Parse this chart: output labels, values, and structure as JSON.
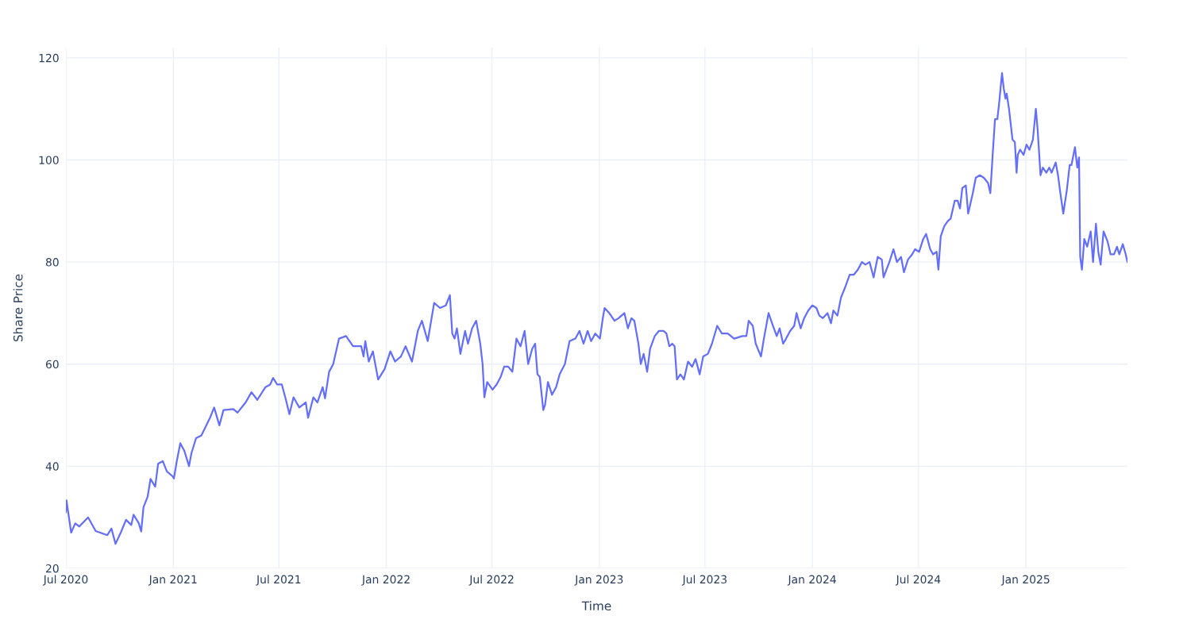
{
  "chart_data": {
    "type": "line",
    "xlabel": "Time",
    "ylabel": "Share Price",
    "xlim": [
      "2020-07-01",
      "2025-06-24"
    ],
    "ylim": [
      20,
      122
    ],
    "xticks": [
      {
        "value": "2020-07-01",
        "label": "Jul 2020"
      },
      {
        "value": "2021-01-01",
        "label": "Jan 2021"
      },
      {
        "value": "2021-07-01",
        "label": "Jul 2021"
      },
      {
        "value": "2022-01-01",
        "label": "Jan 2022"
      },
      {
        "value": "2022-07-01",
        "label": "Jul 2022"
      },
      {
        "value": "2023-01-01",
        "label": "Jan 2023"
      },
      {
        "value": "2023-07-01",
        "label": "Jul 2023"
      },
      {
        "value": "2024-01-01",
        "label": "Jan 2024"
      },
      {
        "value": "2024-07-01",
        "label": "Jul 2024"
      },
      {
        "value": "2025-01-01",
        "label": "Jan 2025"
      }
    ],
    "yticks": [
      20,
      40,
      60,
      80,
      100,
      120
    ],
    "grid": true,
    "marker": "none",
    "line_style": "solid",
    "x": [
      "2020-07-01",
      "2020-07-02",
      "2020-07-10",
      "2020-07-17",
      "2020-07-24",
      "2020-08-08",
      "2020-08-21",
      "2020-09-10",
      "2020-09-17",
      "2020-09-24",
      "2020-10-03",
      "2020-10-12",
      "2020-10-21",
      "2020-10-25",
      "2020-11-03",
      "2020-11-07",
      "2020-11-11",
      "2020-11-18",
      "2020-11-23",
      "2020-12-01",
      "2020-12-06",
      "2020-12-14",
      "2020-12-21",
      "2020-12-31",
      "2021-01-02",
      "2021-01-07",
      "2021-01-13",
      "2021-01-20",
      "2021-01-28",
      "2021-02-01",
      "2021-02-09",
      "2021-02-18",
      "2021-03-05",
      "2021-03-12",
      "2021-03-21",
      "2021-03-28",
      "2021-04-14",
      "2021-04-21",
      "2021-05-05",
      "2021-05-15",
      "2021-05-25",
      "2021-06-08",
      "2021-06-16",
      "2021-06-21",
      "2021-06-28",
      "2021-07-06",
      "2021-07-13",
      "2021-07-19",
      "2021-07-26",
      "2021-08-05",
      "2021-08-16",
      "2021-08-20",
      "2021-08-29",
      "2021-09-05",
      "2021-09-14",
      "2021-09-18",
      "2021-09-25",
      "2021-10-02",
      "2021-10-12",
      "2021-10-24",
      "2021-11-05",
      "2021-11-19",
      "2021-11-23",
      "2021-11-26",
      "2021-12-02",
      "2021-12-09",
      "2021-12-18",
      "2021-12-29",
      "2022-01-08",
      "2022-01-16",
      "2022-01-26",
      "2022-02-03",
      "2022-02-14",
      "2022-02-24",
      "2022-03-03",
      "2022-03-13",
      "2022-03-24",
      "2022-04-03",
      "2022-04-13",
      "2022-04-20",
      "2022-04-24",
      "2022-04-28",
      "2022-05-02",
      "2022-05-08",
      "2022-05-16",
      "2022-05-21",
      "2022-05-28",
      "2022-06-04",
      "2022-06-11",
      "2022-06-15",
      "2022-06-18",
      "2022-06-23",
      "2022-07-02",
      "2022-07-09",
      "2022-07-16",
      "2022-07-22",
      "2022-07-29",
      "2022-08-05",
      "2022-08-12",
      "2022-08-19",
      "2022-08-26",
      "2022-09-01",
      "2022-09-08",
      "2022-09-13",
      "2022-09-17",
      "2022-09-21",
      "2022-09-27",
      "2022-09-30",
      "2022-10-05",
      "2022-10-12",
      "2022-10-19",
      "2022-10-25",
      "2022-11-03",
      "2022-11-11",
      "2022-11-21",
      "2022-11-28",
      "2022-12-05",
      "2022-12-12",
      "2022-12-18",
      "2022-12-25",
      "2023-01-02",
      "2023-01-07",
      "2023-01-10",
      "2023-01-18",
      "2023-01-27",
      "2023-02-03",
      "2023-02-13",
      "2023-02-19",
      "2023-02-25",
      "2023-03-02",
      "2023-03-09",
      "2023-03-13",
      "2023-03-18",
      "2023-03-24",
      "2023-03-29",
      "2023-04-06",
      "2023-04-13",
      "2023-04-21",
      "2023-04-26",
      "2023-05-01",
      "2023-05-06",
      "2023-05-10",
      "2023-05-14",
      "2023-05-20",
      "2023-05-26",
      "2023-06-02",
      "2023-06-09",
      "2023-06-15",
      "2023-06-22",
      "2023-06-28",
      "2023-07-06",
      "2023-07-13",
      "2023-07-22",
      "2023-07-30",
      "2023-08-09",
      "2023-08-20",
      "2023-09-03",
      "2023-09-10",
      "2023-09-14",
      "2023-09-21",
      "2023-09-26",
      "2023-10-05",
      "2023-10-10",
      "2023-10-18",
      "2023-10-24",
      "2023-11-01",
      "2023-11-06",
      "2023-11-12",
      "2023-11-17",
      "2023-11-24",
      "2023-12-01",
      "2023-12-05",
      "2023-12-12",
      "2023-12-18",
      "2023-12-25",
      "2024-01-01",
      "2024-01-08",
      "2024-01-13",
      "2024-01-19",
      "2024-01-27",
      "2024-02-02",
      "2024-02-06",
      "2024-02-13",
      "2024-02-19",
      "2024-02-26",
      "2024-03-05",
      "2024-03-12",
      "2024-03-19",
      "2024-03-26",
      "2024-04-01",
      "2024-04-08",
      "2024-04-15",
      "2024-04-22",
      "2024-04-29",
      "2024-05-02",
      "2024-05-12",
      "2024-05-19",
      "2024-05-25",
      "2024-06-01",
      "2024-06-06",
      "2024-06-13",
      "2024-06-20",
      "2024-06-25",
      "2024-07-02",
      "2024-07-09",
      "2024-07-14",
      "2024-07-21",
      "2024-07-26",
      "2024-08-01",
      "2024-08-04",
      "2024-08-08",
      "2024-08-14",
      "2024-08-20",
      "2024-08-25",
      "2024-09-01",
      "2024-09-06",
      "2024-09-10",
      "2024-09-14",
      "2024-09-20",
      "2024-09-24",
      "2024-09-28",
      "2024-10-02",
      "2024-10-07",
      "2024-10-14",
      "2024-10-21",
      "2024-10-28",
      "2024-11-01",
      "2024-11-05",
      "2024-11-09",
      "2024-11-13",
      "2024-11-16",
      "2024-11-21",
      "2024-11-24",
      "2024-11-27",
      "2024-11-29",
      "2024-12-03",
      "2024-12-09",
      "2024-12-13",
      "2024-12-16",
      "2024-12-18",
      "2024-12-22",
      "2024-12-28",
      "2025-01-02",
      "2025-01-07",
      "2025-01-13",
      "2025-01-18",
      "2025-01-21",
      "2025-01-26",
      "2025-01-30",
      "2025-02-05",
      "2025-02-10",
      "2025-02-14",
      "2025-02-21",
      "2025-02-25",
      "2025-03-01",
      "2025-03-06",
      "2025-03-12",
      "2025-03-17",
      "2025-03-20",
      "2025-03-26",
      "2025-03-30",
      "2025-04-02",
      "2025-04-04",
      "2025-04-07",
      "2025-04-11",
      "2025-04-16",
      "2025-04-22",
      "2025-04-26",
      "2025-05-01",
      "2025-05-05",
      "2025-05-09",
      "2025-05-14",
      "2025-05-21",
      "2025-05-26",
      "2025-06-01",
      "2025-06-06",
      "2025-06-10",
      "2025-06-16",
      "2025-06-21",
      "2025-06-24"
    ],
    "series": [
      {
        "color": "#636efa",
        "values": [
          31,
          33.3,
          27,
          28.8,
          28.2,
          30,
          27.3,
          26.5,
          27.8,
          24.8,
          27,
          29.5,
          28.5,
          30.5,
          28.8,
          27.2,
          32,
          34,
          37.5,
          36,
          40.5,
          41,
          39,
          38,
          37.6,
          41,
          44.5,
          43,
          40,
          42.5,
          45.5,
          46,
          49.5,
          51.5,
          48,
          51,
          51.2,
          50.5,
          52.5,
          54.5,
          53,
          55.5,
          56,
          57.3,
          56,
          56,
          53,
          50.2,
          53.5,
          51.5,
          52.5,
          49.5,
          53.5,
          52.5,
          55.5,
          53.3,
          58.5,
          60,
          65,
          65.5,
          63.5,
          63.5,
          61.5,
          64.5,
          60.5,
          62.5,
          57,
          59,
          62.5,
          60.5,
          61.5,
          63.5,
          60.5,
          66.5,
          68.5,
          64.5,
          72,
          71,
          71.5,
          73.5,
          66,
          65,
          67,
          62,
          66.5,
          64,
          67,
          68.5,
          64,
          60,
          53.5,
          56.5,
          55,
          56,
          57.5,
          59.5,
          59.5,
          58.5,
          65,
          63.5,
          66.5,
          60,
          63,
          64,
          58,
          57.5,
          51,
          52,
          56.5,
          54,
          55.5,
          58,
          60,
          64.5,
          65,
          66.5,
          64,
          66.5,
          64.5,
          66,
          65,
          69,
          71,
          70,
          68.5,
          69,
          70,
          67,
          69,
          68.5,
          64,
          60,
          62,
          58.5,
          63,
          65.5,
          66.5,
          66.5,
          66,
          63.5,
          64,
          63.5,
          57,
          58,
          57,
          60.5,
          59.5,
          61,
          58,
          61.5,
          62,
          64,
          67.5,
          66,
          66,
          65,
          65.5,
          65.5,
          68.5,
          67.5,
          64,
          61.5,
          65,
          70,
          68,
          65.5,
          67,
          64,
          65,
          66.5,
          67.5,
          70,
          67,
          69,
          70.5,
          71.5,
          71,
          69.5,
          69,
          70,
          68,
          70.5,
          69.5,
          73,
          75,
          77.5,
          77.5,
          78.5,
          80,
          79.5,
          80,
          77,
          81,
          80.5,
          77,
          80,
          82.5,
          80,
          81,
          78,
          80.5,
          81.5,
          82.5,
          82,
          84.5,
          85.5,
          82.5,
          81.5,
          82,
          78.5,
          85,
          87,
          88,
          88.5,
          92,
          92,
          90.5,
          94.5,
          95,
          89.5,
          91.5,
          93.5,
          96.5,
          97,
          96.5,
          95.5,
          93.5,
          101,
          108,
          108,
          111,
          117,
          114,
          112,
          113,
          110,
          104,
          103.5,
          97.5,
          101,
          102,
          101,
          103,
          102,
          104,
          110,
          106,
          97,
          98.5,
          97.5,
          98.5,
          97.5,
          99.5,
          97,
          93.5,
          89.5,
          94,
          99,
          99,
          102.5,
          98.5,
          100.5,
          81,
          78.5,
          84.5,
          83,
          86,
          80,
          87.5,
          82,
          79.5,
          86,
          84,
          81.5,
          81.5,
          83,
          81.5,
          83.5,
          81.5,
          80
        ]
      }
    ]
  }
}
